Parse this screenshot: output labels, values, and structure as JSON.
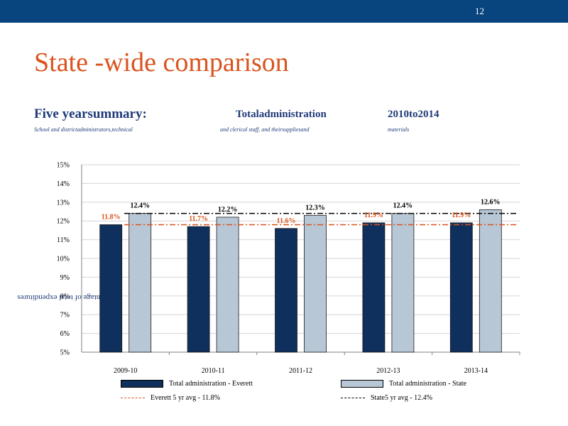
{
  "slide": {
    "page_number": "12",
    "title": "State    -wide     comparison",
    "subtitle_left": "Five       yearsummary:",
    "subtitle_center": "Totaladministration",
    "subtitle_right": "2010to2014",
    "description_left": "School       and      districtadministrators,technical",
    "description_center": "and      clerical       staff,       and      theirsuppliesand",
    "description_right": "materials",
    "colors": {
      "header_bar": "#08457e",
      "title": "#d9531e",
      "subtitle": "#1f3a78"
    }
  },
  "chart_data": {
    "type": "bar",
    "categories": [
      "2009-10",
      "2010-11",
      "2011-12",
      "2012-13",
      "2013-14"
    ],
    "series": [
      {
        "name": "Total    administration          -  Everett",
        "values": [
          11.8,
          11.7,
          11.6,
          11.9,
          11.9
        ],
        "labels": [
          "11.8%",
          "11.7%",
          "11.6%",
          "11.9%",
          "11.9%"
        ],
        "color": "#0f2f5c"
      },
      {
        "name": "Total      administration            -  State",
        "values": [
          12.4,
          12.2,
          12.3,
          12.4,
          12.6
        ],
        "labels": [
          "12.4%",
          "12.2%",
          "12.3%",
          "12.4%",
          "12.6%"
        ],
        "color": "#b8c7d6"
      }
    ],
    "reference_lines": [
      {
        "name": "Everett      5   yr   avg   -  11.8%",
        "value": 11.8,
        "color": "#d9531e",
        "style": "dash-dot"
      },
      {
        "name": "State5      yr   avg   -  12.4%",
        "value": 12.4,
        "color": "#000000",
        "style": "dash-dot"
      }
    ],
    "ylabel": "Percentage of total expenditures",
    "ylim": [
      5,
      15
    ],
    "yticks": [
      "5%",
      "6%",
      "7%",
      "8%",
      "9%",
      "10%",
      "11%",
      "12%",
      "13%",
      "14%",
      "15%"
    ],
    "grid": true,
    "legend_position": "bottom",
    "label_colors": {
      "everett": "#d9531e",
      "state": "#000000"
    }
  }
}
